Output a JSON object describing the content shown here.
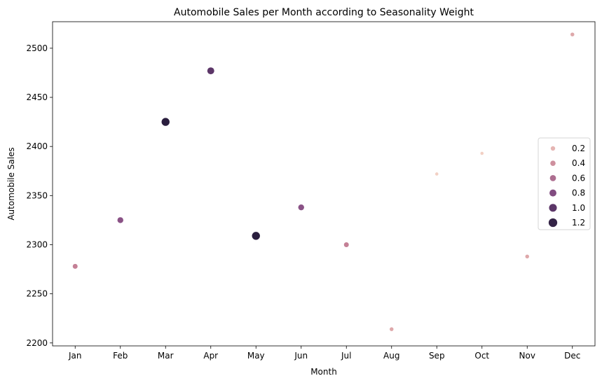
{
  "chart_data": {
    "type": "scatter",
    "title": "Automobile Sales per Month according to Seasonality Weight",
    "xlabel": "Month",
    "ylabel": "Automobile Sales",
    "categories": [
      "Jan",
      "Feb",
      "Mar",
      "Apr",
      "May",
      "Jun",
      "Jul",
      "Aug",
      "Sep",
      "Oct",
      "Nov",
      "Dec"
    ],
    "ylim": [
      2197,
      2527
    ],
    "yticks": [
      2200,
      2250,
      2300,
      2350,
      2400,
      2450,
      2500
    ],
    "grid": false,
    "legend_position": "center-right",
    "points": [
      {
        "x": "Jan",
        "y": 2278,
        "weight": 0.5
      },
      {
        "x": "Feb",
        "y": 2325,
        "weight": 0.75
      },
      {
        "x": "Mar",
        "y": 2425,
        "weight": 1.25
      },
      {
        "x": "Apr",
        "y": 2477,
        "weight": 1.0
      },
      {
        "x": "May",
        "y": 2309,
        "weight": 1.25
      },
      {
        "x": "Jun",
        "y": 2338,
        "weight": 0.75
      },
      {
        "x": "Jul",
        "y": 2300,
        "weight": 0.5
      },
      {
        "x": "Aug",
        "y": 2214,
        "weight": 0.25
      },
      {
        "x": "Sep",
        "y": 2372,
        "weight": 0.1
      },
      {
        "x": "Oct",
        "y": 2393,
        "weight": 0.1
      },
      {
        "x": "Nov",
        "y": 2288,
        "weight": 0.25
      },
      {
        "x": "Dec",
        "y": 2514,
        "weight": 0.25
      }
    ],
    "legend": [
      {
        "label": "0.2",
        "weight": 0.2
      },
      {
        "label": "0.4",
        "weight": 0.4
      },
      {
        "label": "0.6",
        "weight": 0.6
      },
      {
        "label": "0.8",
        "weight": 0.8
      },
      {
        "label": "1.0",
        "weight": 1.0
      },
      {
        "label": "1.2",
        "weight": 1.2
      }
    ],
    "colors": {
      "low": "#f2c9bf",
      "mid_low": "#d18f9a",
      "mid": "#a8678f",
      "mid_high": "#7c4a80",
      "high": "#543566",
      "top": "#2c1e3e"
    }
  }
}
